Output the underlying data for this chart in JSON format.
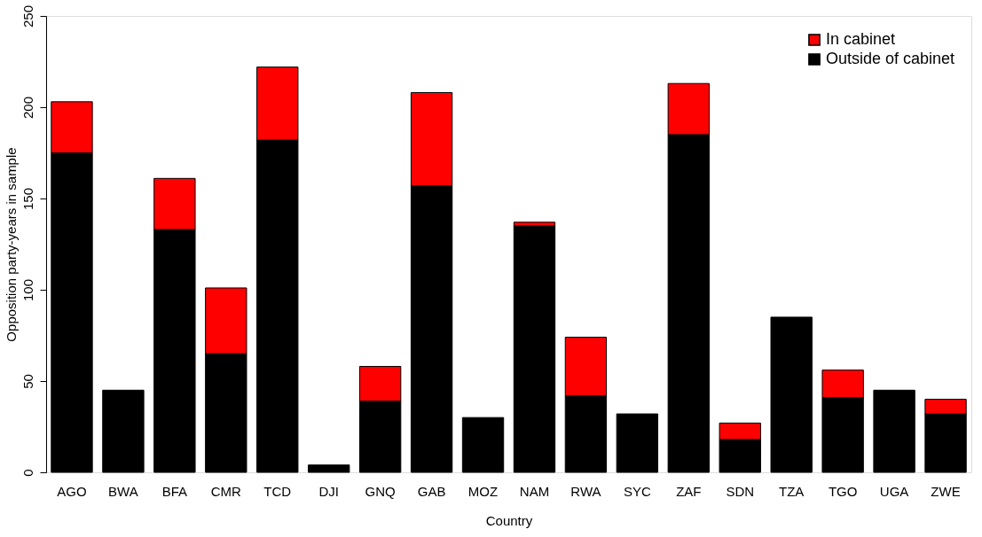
{
  "chart_data": {
    "type": "bar",
    "xlabel": "Country",
    "ylabel": "Opposition party-years in sample",
    "categories": [
      "AGO",
      "BWA",
      "BFA",
      "CMR",
      "TCD",
      "DJI",
      "GNQ",
      "GAB",
      "MOZ",
      "NAM",
      "RWA",
      "SYC",
      "ZAF",
      "SDN",
      "TZA",
      "TGO",
      "UGA",
      "ZWE"
    ],
    "stacked": true,
    "series": [
      {
        "name": "Outside of cabinet",
        "color": "#000000",
        "values": [
          175,
          45,
          133,
          65,
          182,
          4,
          39,
          157,
          30,
          135,
          42,
          32,
          185,
          18,
          85,
          41,
          45,
          32
        ]
      },
      {
        "name": "In cabinet",
        "color": "#ff0000",
        "values": [
          28,
          null,
          28,
          36,
          40,
          null,
          19,
          51,
          null,
          2,
          32,
          null,
          28,
          9,
          null,
          15,
          null,
          8
        ]
      }
    ],
    "ylim": [
      0,
      250
    ],
    "yticks": [
      0,
      50,
      100,
      150,
      200,
      250
    ],
    "grid": false,
    "legend": "top right"
  }
}
